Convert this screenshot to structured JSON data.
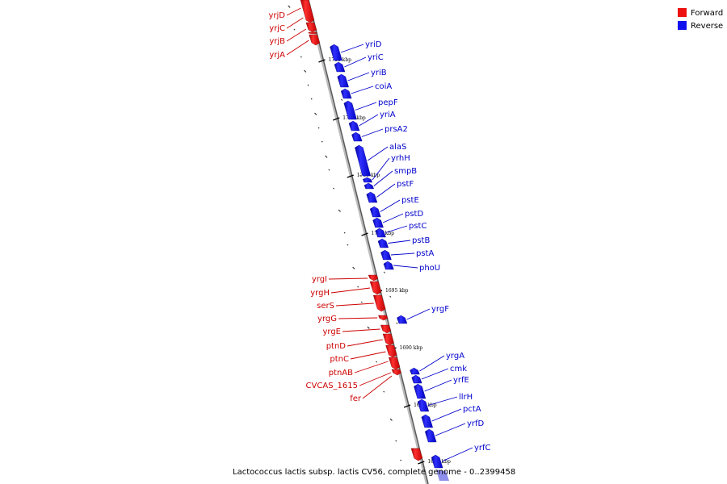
{
  "legend": {
    "forward_label": "Forward",
    "reverse_label": "Reverse",
    "forward_color": "#ee1111",
    "reverse_color": "#1111ee"
  },
  "caption": "Lactococcus lactis subsp. lactis CV56, complete genome - 0..2399458",
  "kbp_marks": [
    "1715 kbp",
    "1710 kbp",
    "1705 kbp",
    "1700 kbp",
    "1695 kbp",
    "1690 kbp",
    "1685 kbp",
    "1680 kbp"
  ],
  "forward_genes": [
    "yrjD",
    "yrjC",
    "yrjB",
    "yrjA",
    "yrgI",
    "yrgH",
    "serS",
    "yrgG",
    "yrgE",
    "ptnD",
    "ptnC",
    "ptnAB",
    "CVCAS_1615",
    "fer"
  ],
  "reverse_genes": [
    "yriD",
    "yriC",
    "yriB",
    "coiA",
    "pepF",
    "yriA",
    "prsA2",
    "alaS",
    "yrhH",
    "smpB",
    "pstF",
    "pstE",
    "pstD",
    "pstC",
    "pstB",
    "pstA",
    "phoU",
    "yrgF",
    "yrgA",
    "cmk",
    "yrfE",
    "llrH",
    "pctA",
    "yrfD",
    "yrfC"
  ]
}
